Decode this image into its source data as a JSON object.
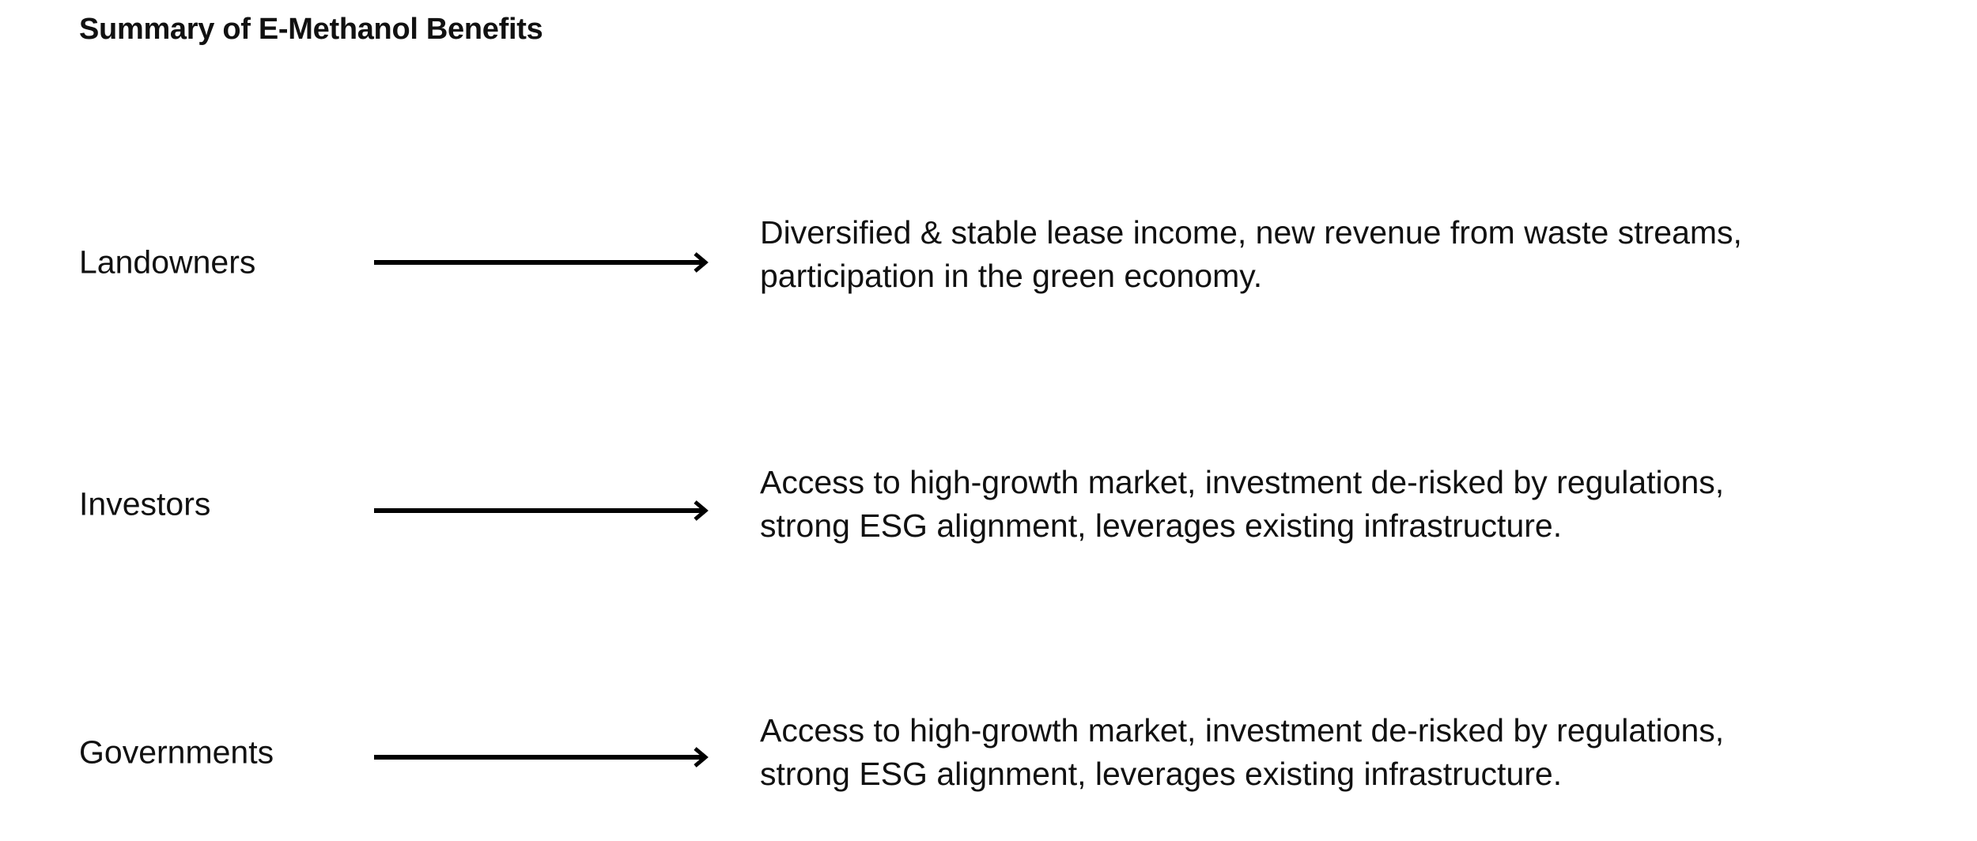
{
  "title": "Summary of E-Methanol Benefits",
  "rows": [
    {
      "label": "Landowners",
      "lines": [
        "Diversified & stable lease income, new revenue from waste streams,",
        "participation in the green economy."
      ]
    },
    {
      "label": "Investors",
      "lines": [
        "Access to high-growth market, investment de-risked by regulations,",
        "strong ESG alignment, leverages existing infrastructure."
      ]
    },
    {
      "label": "Governments",
      "lines": [
        "Access to high-growth market, investment de-risked by regulations,",
        "strong ESG alignment, leverages existing infrastructure."
      ]
    }
  ]
}
